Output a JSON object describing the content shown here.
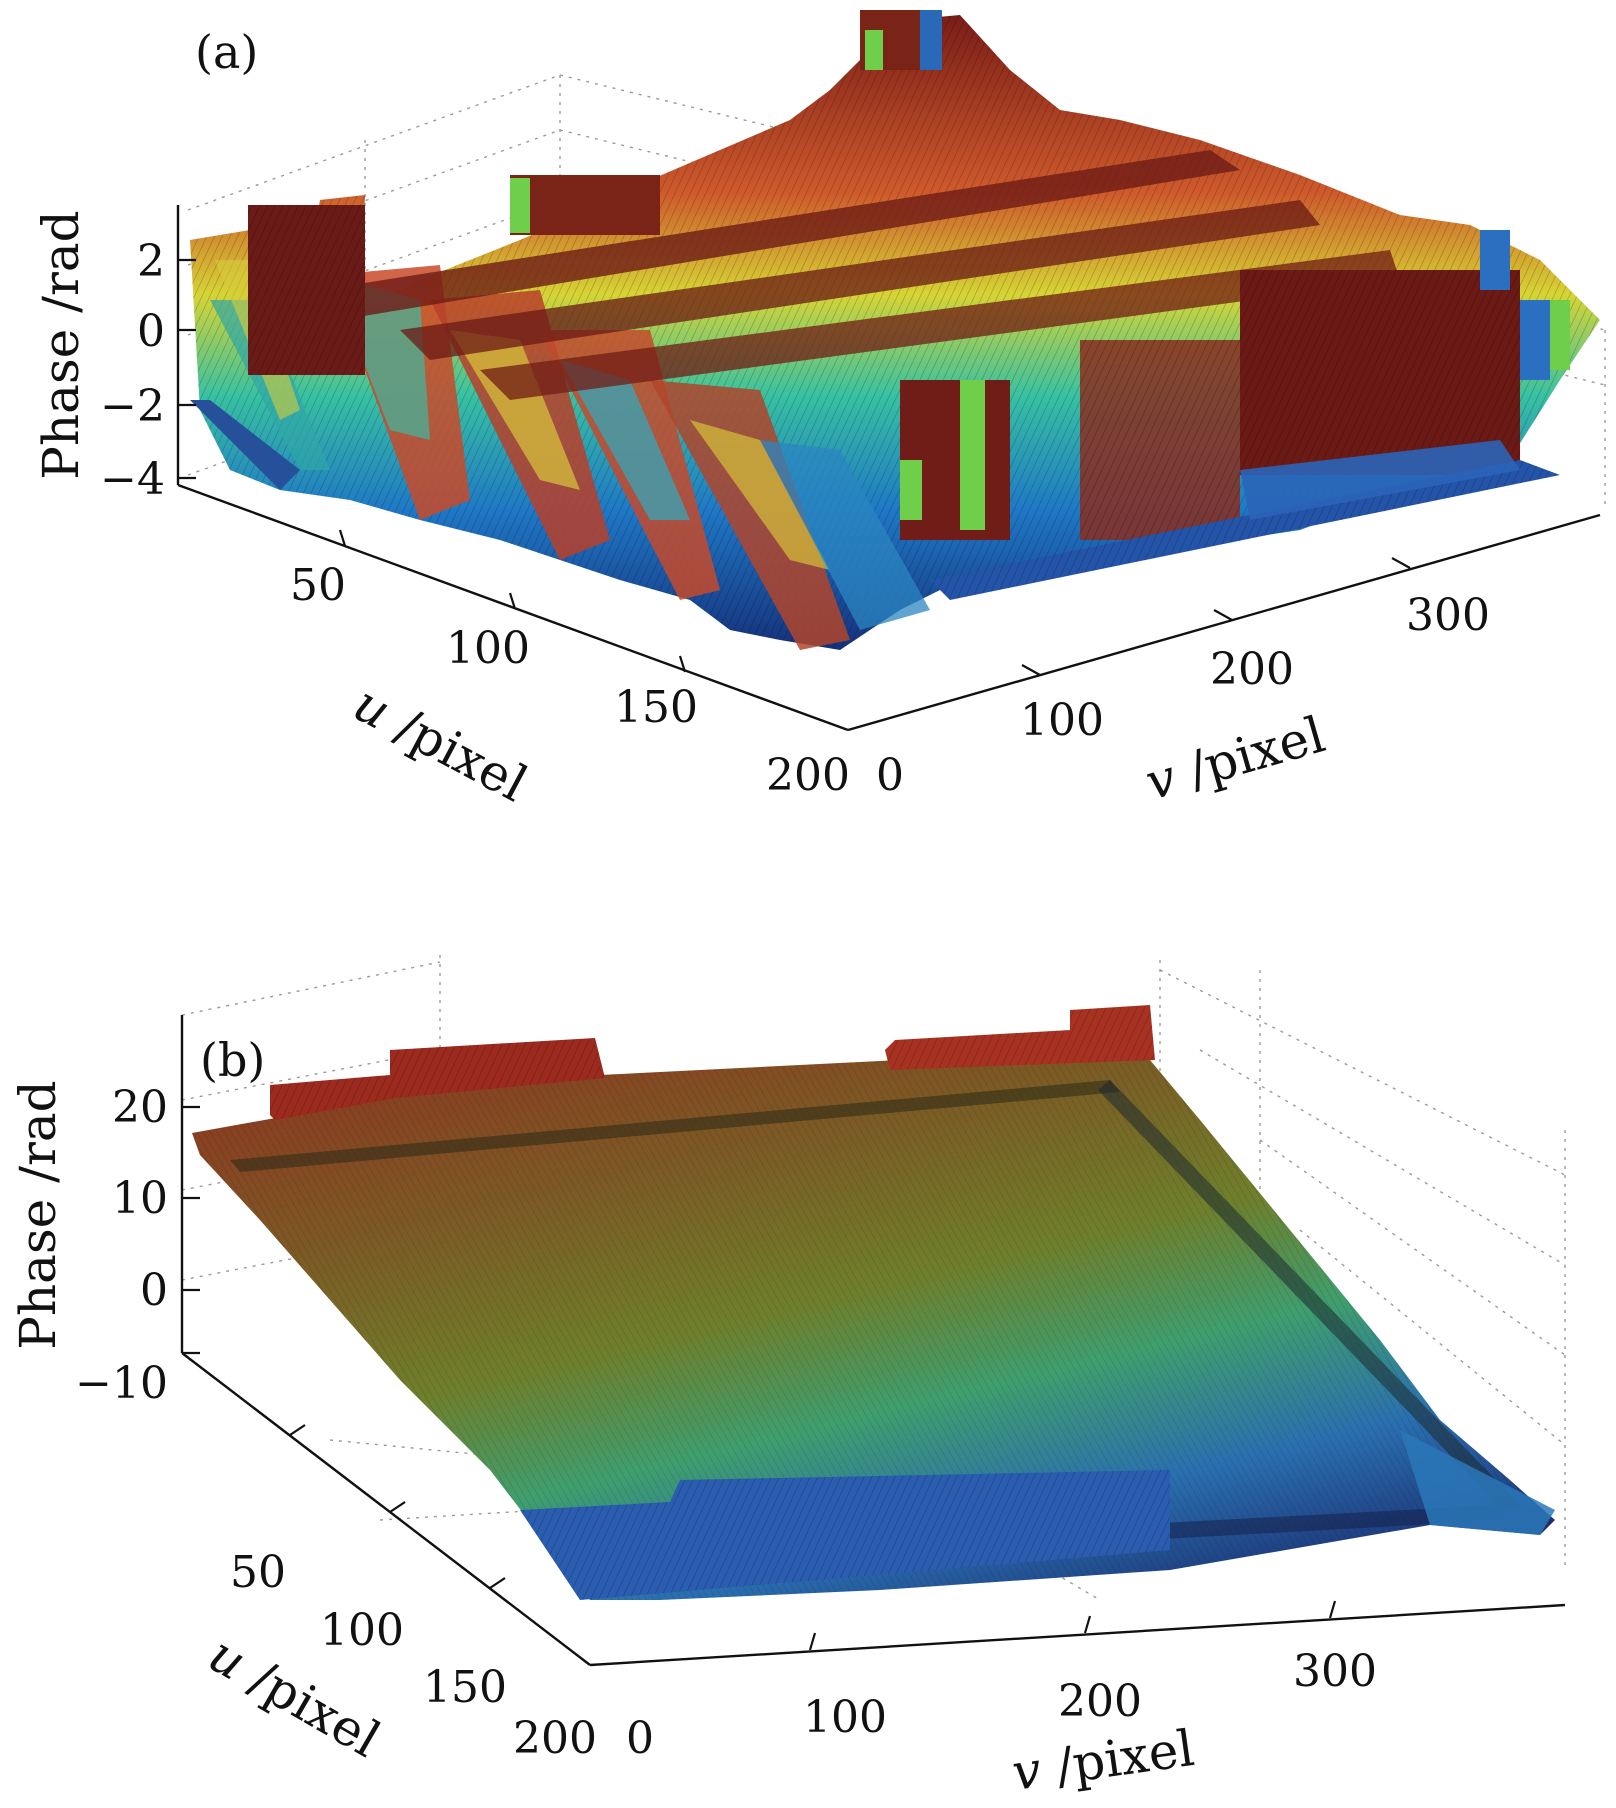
{
  "chart_data": [
    {
      "type": "surface",
      "panel_label": "(a)",
      "xlabel_prefix": "u",
      "xlabel_suffix": " /pixel",
      "ylabel_prefix": "v",
      "ylabel_suffix": " /pixel",
      "zlabel": "Phase /rad",
      "u_ticks": [
        "50",
        "100",
        "150",
        "200"
      ],
      "v_ticks": [
        "0",
        "100",
        "200",
        "300"
      ],
      "z_ticks": [
        "2",
        "0",
        "−2",
        "−4"
      ],
      "u_range": [
        0,
        200
      ],
      "v_range": [
        0,
        400
      ],
      "z_range": [
        -4.5,
        3.2
      ],
      "grid": true,
      "surface": "wrapped phase: sawtooth ridges between -3.14 and 3.14 rad along the diagonal, with raised rectangular blocks",
      "colormap": "jet"
    },
    {
      "type": "surface",
      "panel_label": "(b)",
      "xlabel_prefix": "u",
      "xlabel_suffix": " /pixel",
      "ylabel_prefix": "v",
      "ylabel_suffix": " /pixel",
      "zlabel": "Phase /rad",
      "u_ticks": [
        "50",
        "100",
        "150",
        "200"
      ],
      "v_ticks": [
        "0",
        "100",
        "200",
        "300"
      ],
      "z_ticks": [
        "20",
        "10",
        "0",
        "−10"
      ],
      "u_range": [
        0,
        200
      ],
      "v_range": [
        0,
        400
      ],
      "z_range": [
        -20,
        25
      ],
      "grid": true,
      "surface": "unwrapped phase: smooth tilted plane rising from about -17 rad to about 17 rad",
      "colormap": "jet"
    }
  ]
}
